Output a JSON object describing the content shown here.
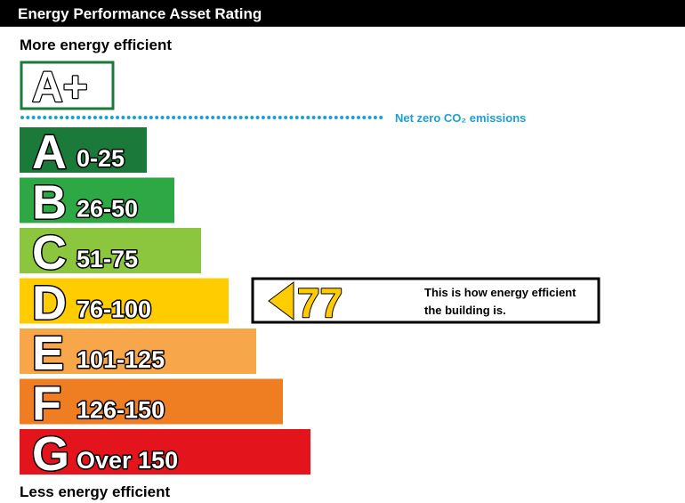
{
  "header": {
    "title": "Energy Performance Asset Rating"
  },
  "top_label": "More energy efficient",
  "best_rating": {
    "label": "A+"
  },
  "net_zero": {
    "label": "Net zero CO₂ emissions"
  },
  "bands": [
    {
      "letter": "A",
      "range": "0-25",
      "color": "#1b7a3a"
    },
    {
      "letter": "B",
      "range": "26-50",
      "color": "#2ea844"
    },
    {
      "letter": "C",
      "range": "51-75",
      "color": "#8cc63e"
    },
    {
      "letter": "D",
      "range": "76-100",
      "color": "#ffcc00"
    },
    {
      "letter": "E",
      "range": "101-125",
      "color": "#f7a64a"
    },
    {
      "letter": "F",
      "range": "126-150",
      "color": "#ef7d22"
    },
    {
      "letter": "G",
      "range": "Over 150",
      "color": "#e3141c"
    }
  ],
  "rating": {
    "value": 77,
    "band_index": 3,
    "description": [
      "This is how energy efficient",
      "the building is."
    ]
  },
  "bottom_label": "Less energy efficient"
}
